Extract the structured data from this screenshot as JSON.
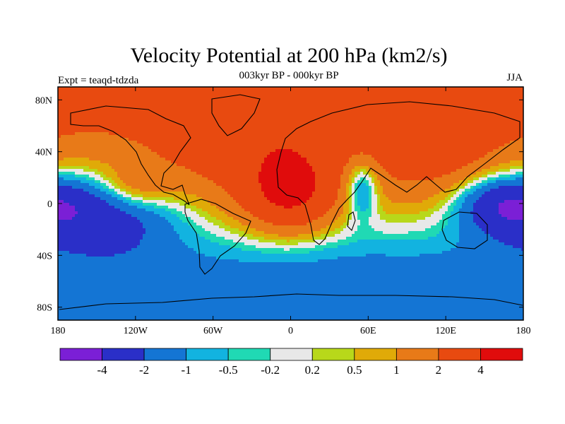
{
  "title": "Velocity Potential at 200 hPa (km2/s)",
  "left_label": "Expt = teaqd-tdzda",
  "center_label": "003kyr BP - 000kyr BP",
  "right_label": "JJA",
  "chart_data": {
    "type": "filled-contour-map",
    "projection": "cylindrical-equidistant",
    "lon_range": [
      -180,
      180
    ],
    "lat_range": [
      -90,
      90
    ],
    "x_ticks": [
      {
        "lon": -180,
        "label": "180"
      },
      {
        "lon": -120,
        "label": "120W"
      },
      {
        "lon": -60,
        "label": "60W"
      },
      {
        "lon": 0,
        "label": "0"
      },
      {
        "lon": 60,
        "label": "60E"
      },
      {
        "lon": 120,
        "label": "120E"
      },
      {
        "lon": 180,
        "label": "180"
      }
    ],
    "y_ticks": [
      {
        "lat": 80,
        "label": "80N"
      },
      {
        "lat": 40,
        "label": "40N"
      },
      {
        "lat": 0,
        "label": "0"
      },
      {
        "lat": -40,
        "label": "40S"
      },
      {
        "lat": -80,
        "label": "80S"
      }
    ],
    "colorbar": {
      "bins": [
        {
          "color": "#7b1fd6",
          "lower": null
        },
        {
          "color": "#2a2fc8",
          "lower": -4
        },
        {
          "color": "#1475d4",
          "lower": -2
        },
        {
          "color": "#12b3e0",
          "lower": -1
        },
        {
          "color": "#20d9b4",
          "lower": -0.5
        },
        {
          "color": "#e8e8e8",
          "lower": -0.2
        },
        {
          "color": "#b8d81a",
          "lower": 0.2
        },
        {
          "color": "#e0aa08",
          "lower": 0.5
        },
        {
          "color": "#e87a18",
          "lower": 1
        },
        {
          "color": "#e84a10",
          "lower": 2
        },
        {
          "color": "#e00c0c",
          "lower": 4
        }
      ],
      "tick_labels": [
        "-4",
        "-2",
        "-1",
        "-0.5",
        "-0.2",
        "0.2",
        "0.5",
        "1",
        "2",
        "4"
      ]
    },
    "field_description": "Positive velocity potential anomalies over the North Atlantic, Africa, Europe and Asia (max ~4 over equatorial West Africa); negative anomalies over the Pacific, southern oceans and a secondary low over East Africa (min below -2 over the western Pacific / maritime continent).",
    "field_blobs": [
      {
        "lon": 0,
        "lat": 8,
        "sigma_lon": 24,
        "sigma_lat": 22,
        "amp": 3.3
      },
      {
        "lon": -120,
        "lat": 12,
        "sigma_lon": 20,
        "sigma_lat": 12,
        "amp": 1.6
      },
      {
        "lon": -35,
        "lat": 45,
        "sigma_lon": 60,
        "sigma_lat": 45,
        "amp": 1.9
      },
      {
        "lon": 110,
        "lat": 35,
        "sigma_lon": 35,
        "sigma_lat": 30,
        "amp": 1.6
      },
      {
        "lon": 100,
        "lat": 70,
        "sigma_lon": 100,
        "sigma_lat": 25,
        "amp": 1.2
      },
      {
        "lon": 55,
        "lat": 12,
        "sigma_lon": 9,
        "sigma_lat": 16,
        "amp": -2.4
      },
      {
        "lon": -150,
        "lat": -10,
        "sigma_lon": 45,
        "sigma_lat": 22,
        "amp": -3.2
      },
      {
        "lon": 165,
        "lat": 0,
        "sigma_lon": 25,
        "sigma_lat": 14,
        "amp": -3.0
      },
      {
        "lon": 10,
        "lat": -55,
        "sigma_lon": 160,
        "sigma_lat": 25,
        "amp": -1.1
      }
    ],
    "field_offset": 0.35,
    "field_lat_gradient": 0.015
  }
}
